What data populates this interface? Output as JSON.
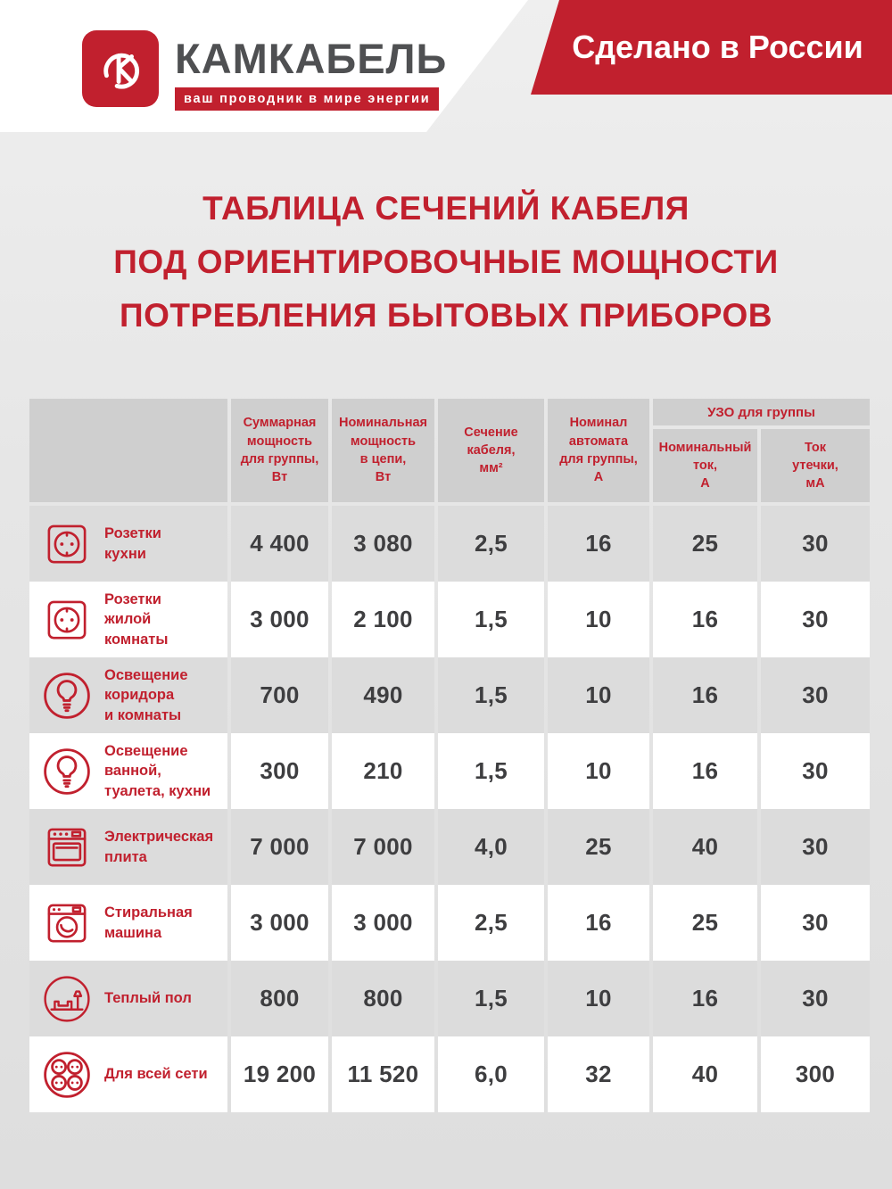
{
  "header": {
    "brand": "КАМКАБЕЛЬ",
    "tagline": "ваш проводник в мире энергии",
    "ribbon": "Сделано в России",
    "logo_icon": "kamkabel-logo"
  },
  "title": "ТАБЛИЦА СЕЧЕНИЙ КАБЕЛЯ\nПОД ОРИЕНТИРОВОЧНЫЕ МОЩНОСТИ\nПОТРЕБЛЕНИЯ БЫТОВЫХ ПРИБОРОВ",
  "colors": {
    "accent_red": "#c1202e",
    "brand_gray": "#4f5052",
    "value_text": "#3e3e40",
    "header_cell_bg": "#cfcfcf",
    "stripe_bg": "#dcdcdc",
    "page_bg": "#e7e7e7"
  },
  "table": {
    "uzo_group_header": "УЗО для группы",
    "headers": [
      "Суммарная\nмощность\nдля группы,\nВт",
      "Номинальная\nмощность\nв цепи,\nВт",
      "Сечение\nкабеля,\nмм²",
      "Номинал\nавтомата\nдля группы,\nА",
      "Номинальный\nток,\nА",
      "Ток\nутечки,\nмА"
    ],
    "rows": [
      {
        "icon": "socket-icon",
        "label": "Розетки\nкухни",
        "values": [
          "4 400",
          "3 080",
          "2,5",
          "16",
          "25",
          "30"
        ]
      },
      {
        "icon": "socket-icon",
        "label": "Розетки\nжилой\nкомнаты",
        "values": [
          "3 000",
          "2 100",
          "1,5",
          "10",
          "16",
          "30"
        ]
      },
      {
        "icon": "bulb-icon",
        "label": "Освещение\nкоридора\nи комнаты",
        "values": [
          "700",
          "490",
          "1,5",
          "10",
          "16",
          "30"
        ]
      },
      {
        "icon": "bulb-icon",
        "label": "Освещение\nванной,\nтуалета, кухни",
        "values": [
          "300",
          "210",
          "1,5",
          "10",
          "16",
          "30"
        ]
      },
      {
        "icon": "stove-icon",
        "label": "Электрическая\nплита",
        "values": [
          "7 000",
          "7 000",
          "4,0",
          "25",
          "40",
          "30"
        ]
      },
      {
        "icon": "washer-icon",
        "label": "Стиральная\nмашина",
        "values": [
          "3 000",
          "3 000",
          "2,5",
          "16",
          "25",
          "30"
        ]
      },
      {
        "icon": "floor-heating-icon",
        "label": "Теплый пол",
        "values": [
          "800",
          "800",
          "1,5",
          "10",
          "16",
          "30"
        ]
      },
      {
        "icon": "power-network-icon",
        "label": "Для всей сети",
        "values": [
          "19 200",
          "11 520",
          "6,0",
          "32",
          "40",
          "300"
        ]
      }
    ]
  },
  "chart_data": {
    "type": "table",
    "title": "ТАБЛИЦА СЕЧЕНИЙ КАБЕЛЯ ПОД ОРИЕНТИРОВОЧНЫЕ МОЩНОСТИ ПОТРЕБЛЕНИЯ БЫТОВЫХ ПРИБОРОВ",
    "columns": [
      "",
      "Суммарная мощность для группы, Вт",
      "Номинальная мощность в цепи, Вт",
      "Сечение кабеля, мм²",
      "Номинал автомата для группы, А",
      "УЗО для группы: Номинальный ток, А",
      "УЗО для группы: Ток утечки, мА"
    ],
    "rows": [
      [
        "Розетки кухни",
        4400,
        3080,
        2.5,
        16,
        25,
        30
      ],
      [
        "Розетки жилой комнаты",
        3000,
        2100,
        1.5,
        10,
        16,
        30
      ],
      [
        "Освещение коридора и комнаты",
        700,
        490,
        1.5,
        10,
        16,
        30
      ],
      [
        "Освещение ванной, туалета, кухни",
        300,
        210,
        1.5,
        10,
        16,
        30
      ],
      [
        "Электрическая плита",
        7000,
        7000,
        4.0,
        25,
        40,
        30
      ],
      [
        "Стиральная машина",
        3000,
        3000,
        2.5,
        16,
        25,
        30
      ],
      [
        "Теплый пол",
        800,
        800,
        1.5,
        10,
        16,
        30
      ],
      [
        "Для всей сети",
        19200,
        11520,
        6.0,
        32,
        40,
        300
      ]
    ]
  }
}
